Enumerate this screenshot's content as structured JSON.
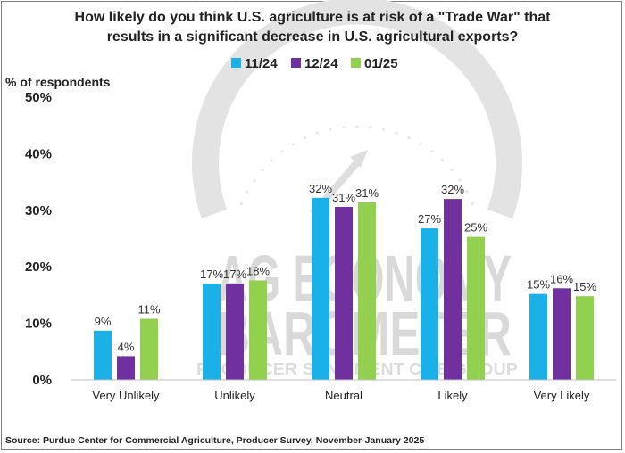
{
  "chart_data": {
    "type": "bar",
    "title_line1": "How likely do you think U.S. agriculture is at risk of a \"Trade War\" that",
    "title_line2": "results in a significant decrease in U.S. agricultural exports?",
    "ylabel": "% of respondents",
    "xlabel": "",
    "ylim": [
      0,
      50
    ],
    "yticks": [
      "0%",
      "10%",
      "20%",
      "30%",
      "40%",
      "50%"
    ],
    "ytick_values": [
      0,
      10,
      20,
      30,
      40,
      50
    ],
    "grid": false,
    "legend_position": "top-center",
    "categories": [
      "Very Unlikely",
      "Unlikely",
      "Neutral",
      "Likely",
      "Very Likely"
    ],
    "series": [
      {
        "name": "11/24",
        "color": "#1ab0e8",
        "values": [
          8.7,
          17,
          32.2,
          26.8,
          15.2
        ],
        "labels": [
          "9%",
          "17%",
          "32%",
          "27%",
          "15%"
        ]
      },
      {
        "name": "12/24",
        "color": "#7030a0",
        "values": [
          4.2,
          17,
          30.6,
          32,
          16.2
        ],
        "labels": [
          "4%",
          "17%",
          "31%",
          "32%",
          "16%"
        ]
      },
      {
        "name": "01/25",
        "color": "#92d050",
        "values": [
          10.8,
          17.6,
          31.4,
          25.3,
          14.8
        ],
        "labels": [
          "11%",
          "18%",
          "31%",
          "25%",
          "15%"
        ]
      }
    ],
    "source": "Source: Purdue Center for Commercial Agriculture, Producer Survey, November-January 2025"
  },
  "watermark": {
    "line1": "AG ECONOMY",
    "line2": "BAROMETER",
    "line3": "PRODUCER SENTIMENT  CME GROUP",
    "color": "#d9d9d9"
  }
}
